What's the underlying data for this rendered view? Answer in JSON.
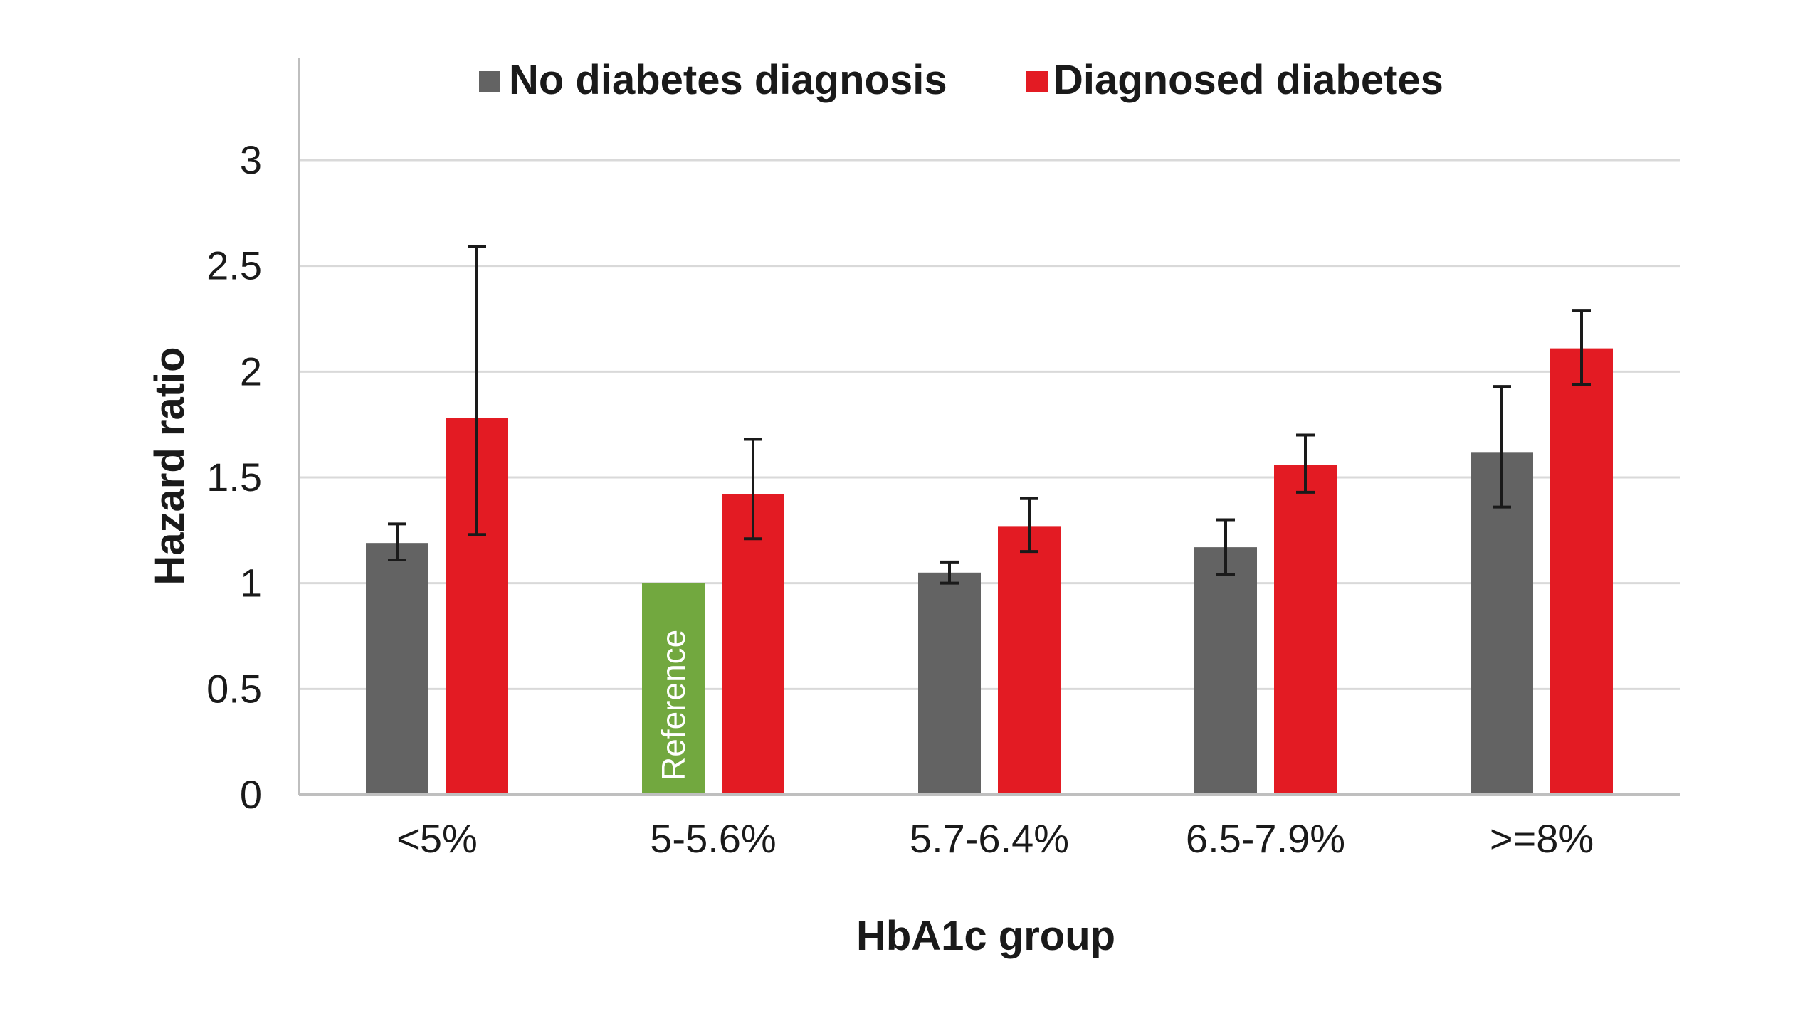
{
  "chart_data": {
    "type": "bar",
    "title": "",
    "xlabel": "HbA1c group",
    "ylabel": "Hazard ratio",
    "ylim": [
      0,
      3
    ],
    "yticks": [
      "0",
      "0.5",
      "1",
      "1.5",
      "2",
      "2.5",
      "3"
    ],
    "grid": true,
    "legend_position": "top",
    "categories": [
      "<5%",
      "5-5.6%",
      "5.7-6.4%",
      "6.5-7.9%",
      ">=8%"
    ],
    "series": [
      {
        "name": "No diabetes diagnosis",
        "color": "#636363",
        "values": [
          1.19,
          1.0,
          1.05,
          1.17,
          1.62
        ],
        "ci_lower": [
          1.11,
          null,
          1.0,
          1.04,
          1.36
        ],
        "ci_upper": [
          1.28,
          null,
          1.1,
          1.3,
          1.93
        ]
      },
      {
        "name": "Diagnosed diabetes",
        "color": "#e31b23",
        "values": [
          1.78,
          1.42,
          1.27,
          1.56,
          2.11
        ],
        "ci_lower": [
          1.23,
          1.21,
          1.15,
          1.43,
          1.94
        ],
        "ci_upper": [
          2.59,
          1.68,
          1.4,
          1.7,
          2.29
        ]
      }
    ],
    "reference": {
      "category_index": 1,
      "series_index": 0,
      "label": "Reference",
      "color": "#72a83f"
    },
    "grid_color": "#d9d9d9",
    "axis_color": "#bfbfbf",
    "error_bar_color": "#1a1a1a"
  }
}
